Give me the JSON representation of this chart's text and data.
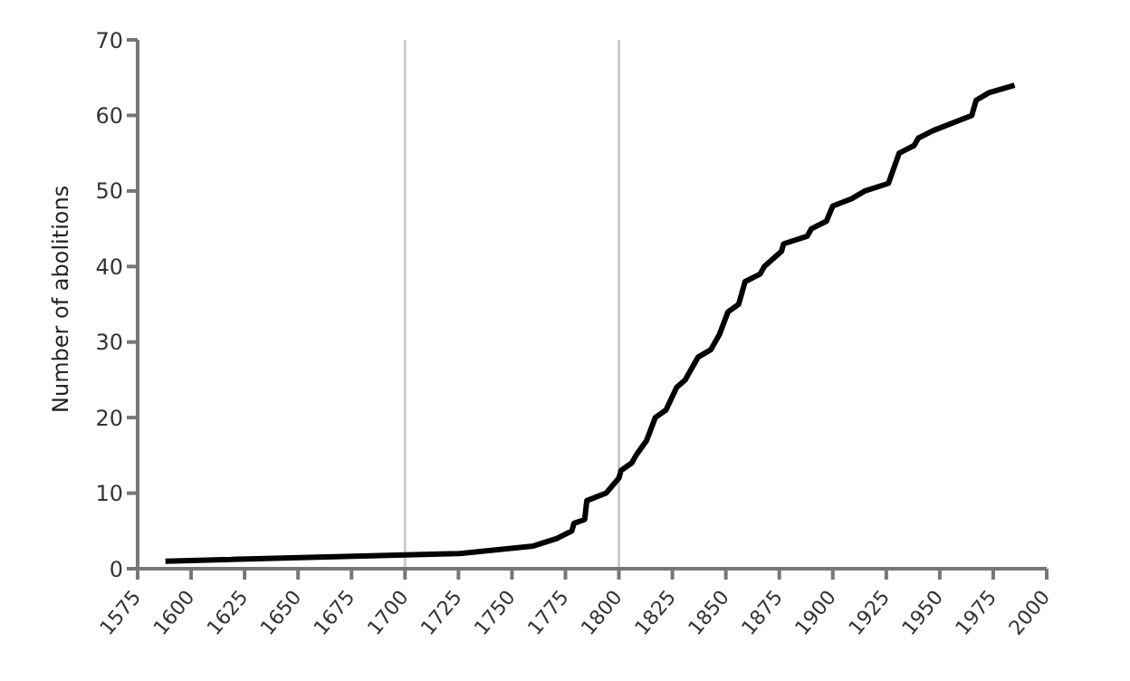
{
  "chart_data": {
    "type": "line",
    "ylabel": "Number of abolitions",
    "x": [
      1588,
      1725,
      1760,
      1771,
      1778,
      1779,
      1784,
      1785,
      1794,
      1797,
      1800,
      1801,
      1806,
      1808,
      1813,
      1817,
      1822,
      1827,
      1831,
      1837,
      1843,
      1847,
      1851,
      1856,
      1859,
      1866,
      1868,
      1876,
      1877,
      1888,
      1890,
      1897,
      1900,
      1909,
      1915,
      1926,
      1931,
      1938,
      1940,
      1947,
      1965,
      1967,
      1973,
      1985
    ],
    "series": [
      {
        "color": "#000000",
        "values": [
          1,
          2,
          3,
          4,
          5,
          6,
          6.5,
          9,
          10,
          11,
          12,
          13,
          14,
          15,
          17,
          20,
          21,
          24,
          25,
          28,
          29,
          31,
          34,
          35,
          38,
          39,
          40,
          42,
          43,
          44,
          45,
          46,
          48,
          49,
          50,
          51,
          55,
          56,
          57,
          58,
          60,
          62,
          63,
          64
        ]
      }
    ],
    "xlim": [
      1575,
      2000
    ],
    "xticks": [
      1575,
      1600,
      1625,
      1650,
      1675,
      1700,
      1725,
      1750,
      1775,
      1800,
      1825,
      1850,
      1875,
      1900,
      1925,
      1950,
      1975,
      2000
    ],
    "ylim": [
      0,
      70
    ],
    "yticks": [
      0,
      10,
      20,
      30,
      40,
      50,
      60,
      70
    ],
    "ref_lines": [
      {
        "axis": "x",
        "value": 1700,
        "color": "#cccccc"
      },
      {
        "axis": "x",
        "value": 1800,
        "color": "#cccccc"
      }
    ],
    "grid": false,
    "legend": false,
    "marker": "none",
    "line_style": "solid"
  }
}
